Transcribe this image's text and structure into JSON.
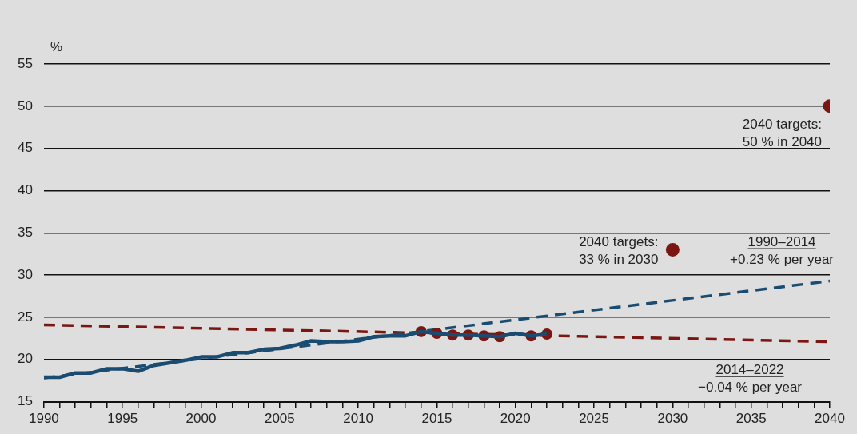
{
  "chart_data": {
    "type": "line",
    "ylabel": "%",
    "xlim": [
      1990,
      2040
    ],
    "ylim": [
      15,
      55
    ],
    "xticks": [
      1990,
      {
        "value": 1991,
        "label": null
      },
      {
        "value": 1992,
        "label": null
      },
      {
        "value": 1993,
        "label": null
      },
      {
        "value": 1994,
        "label": null
      },
      1995,
      {
        "value": 1996,
        "label": null
      },
      {
        "value": 1997,
        "label": null
      },
      {
        "value": 1998,
        "label": null
      },
      {
        "value": 1999,
        "label": null
      },
      2000,
      {
        "value": 2001,
        "label": null
      },
      {
        "value": 2002,
        "label": null
      },
      {
        "value": 2003,
        "label": null
      },
      {
        "value": 2004,
        "label": null
      },
      2005,
      {
        "value": 2006,
        "label": null
      },
      {
        "value": 2007,
        "label": null
      },
      {
        "value": 2008,
        "label": null
      },
      {
        "value": 2009,
        "label": null
      },
      2010,
      {
        "value": 2011,
        "label": null
      },
      {
        "value": 2012,
        "label": null
      },
      {
        "value": 2013,
        "label": null
      },
      {
        "value": 2014,
        "label": null
      },
      2015,
      {
        "value": 2016,
        "label": null
      },
      {
        "value": 2017,
        "label": null
      },
      {
        "value": 2018,
        "label": null
      },
      {
        "value": 2019,
        "label": null
      },
      2020,
      {
        "value": 2021,
        "label": null
      },
      {
        "value": 2022,
        "label": null
      },
      {
        "value": 2023,
        "label": null
      },
      {
        "value": 2024,
        "label": null
      },
      2025,
      {
        "value": 2026,
        "label": null
      },
      {
        "value": 2027,
        "label": null
      },
      {
        "value": 2028,
        "label": null
      },
      {
        "value": 2029,
        "label": null
      },
      2030,
      {
        "value": 2031,
        "label": null
      },
      {
        "value": 2032,
        "label": null
      },
      {
        "value": 2033,
        "label": null
      },
      {
        "value": 2034,
        "label": null
      },
      2035,
      {
        "value": 2036,
        "label": null
      },
      {
        "value": 2037,
        "label": null
      },
      {
        "value": 2038,
        "label": null
      },
      {
        "value": 2039,
        "label": null
      },
      2040
    ],
    "yticks": [
      15,
      20,
      25,
      30,
      35,
      40,
      45,
      50,
      55
    ],
    "grid": "y",
    "legend": false,
    "series": [
      {
        "marker": "none",
        "color": "#1a4c72",
        "x": [
          1990,
          1991,
          1992,
          1993,
          1994,
          1995,
          1996,
          1997,
          1998,
          1999,
          2000,
          2001,
          2002,
          2003,
          2004,
          2005,
          2006,
          2007,
          2008,
          2009,
          2010,
          2011,
          2012,
          2013,
          2014,
          2015,
          2016,
          2017,
          2018,
          2019,
          2020,
          2021,
          2022
        ],
        "values": [
          17.9,
          17.9,
          18.4,
          18.4,
          18.9,
          18.9,
          18.6,
          19.3,
          19.6,
          19.9,
          20.3,
          20.3,
          20.8,
          20.8,
          21.2,
          21.3,
          21.7,
          22.2,
          22.1,
          22.1,
          22.2,
          22.7,
          22.8,
          22.8,
          23.3,
          23.1,
          22.9,
          22.9,
          22.8,
          22.7,
          23.1,
          22.8,
          23.0
        ]
      },
      {
        "type": "scatter",
        "marker": "circle",
        "color": "#7a1712",
        "x": [
          2014,
          2015,
          2016,
          2017,
          2018,
          2019,
          2021,
          2022
        ],
        "values": [
          23.3,
          23.1,
          22.9,
          22.9,
          22.8,
          22.7,
          22.8,
          23.0
        ]
      },
      {
        "marker": "none",
        "line_style": "dashed",
        "name": "1990–2014\n+0.23 % per year",
        "color": "#1a4c72",
        "x": [
          1990,
          2040
        ],
        "values": [
          17.8,
          29.3
        ]
      },
      {
        "marker": "none",
        "line_style": "dashed",
        "name": "2014–2022\n−0.04 % per year",
        "color": "#7a1712",
        "x": [
          1990,
          2040
        ],
        "values": [
          24.1,
          22.1
        ]
      },
      {
        "type": "scatter",
        "marker": "circle",
        "color": "#7a1712",
        "x": [
          2030,
          2040
        ],
        "values": [
          33,
          50
        ]
      }
    ],
    "annotations": [
      {
        "text": "2040 targets:\n33 % in 2030",
        "x": 2030,
        "y": 33
      },
      {
        "text": "2040 targets:\n50 % in 2040",
        "x": 2040,
        "y": 50
      }
    ]
  }
}
